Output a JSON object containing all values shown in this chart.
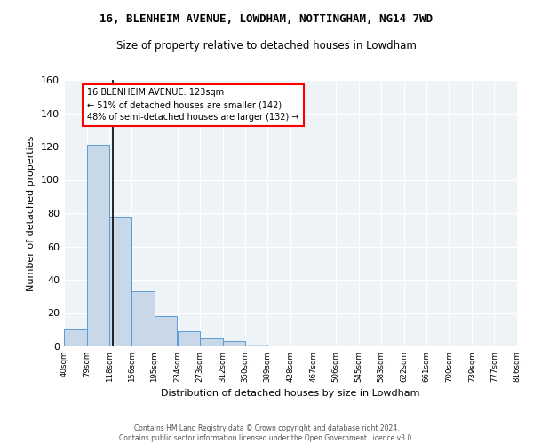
{
  "title1": "16, BLENHEIM AVENUE, LOWDHAM, NOTTINGHAM, NG14 7WD",
  "title2": "Size of property relative to detached houses in Lowdham",
  "xlabel": "Distribution of detached houses by size in Lowdham",
  "ylabel": "Number of detached properties",
  "bar_values": [
    10,
    121,
    78,
    33,
    18,
    9,
    5,
    3,
    1,
    0,
    0,
    0,
    0,
    0,
    0,
    0,
    0,
    0,
    0,
    0
  ],
  "bin_edges": [
    40,
    79,
    118,
    156,
    195,
    234,
    273,
    312,
    350,
    389,
    428,
    467,
    506,
    545,
    583,
    622,
    661,
    700,
    739,
    777,
    816
  ],
  "tick_labels": [
    "40sqm",
    "79sqm",
    "118sqm",
    "156sqm",
    "195sqm",
    "234sqm",
    "273sqm",
    "312sqm",
    "350sqm",
    "389sqm",
    "428sqm",
    "467sqm",
    "506sqm",
    "545sqm",
    "583sqm",
    "622sqm",
    "661sqm",
    "700sqm",
    "739sqm",
    "777sqm",
    "816sqm"
  ],
  "bar_color": "#c8d8e8",
  "bar_edge_color": "#5b9bd5",
  "vline_x": 123,
  "vline_color": "black",
  "annotation_text": "16 BLENHEIM AVENUE: 123sqm\n← 51% of detached houses are smaller (142)\n48% of semi-detached houses are larger (132) →",
  "annotation_box_color": "white",
  "annotation_box_edge": "red",
  "ylim": [
    0,
    160
  ],
  "yticks": [
    0,
    20,
    40,
    60,
    80,
    100,
    120,
    140,
    160
  ],
  "background_color": "#eef3f8",
  "grid_color": "white",
  "footnote": "Contains HM Land Registry data © Crown copyright and database right 2024.\nContains public sector information licensed under the Open Government Licence v3.0."
}
